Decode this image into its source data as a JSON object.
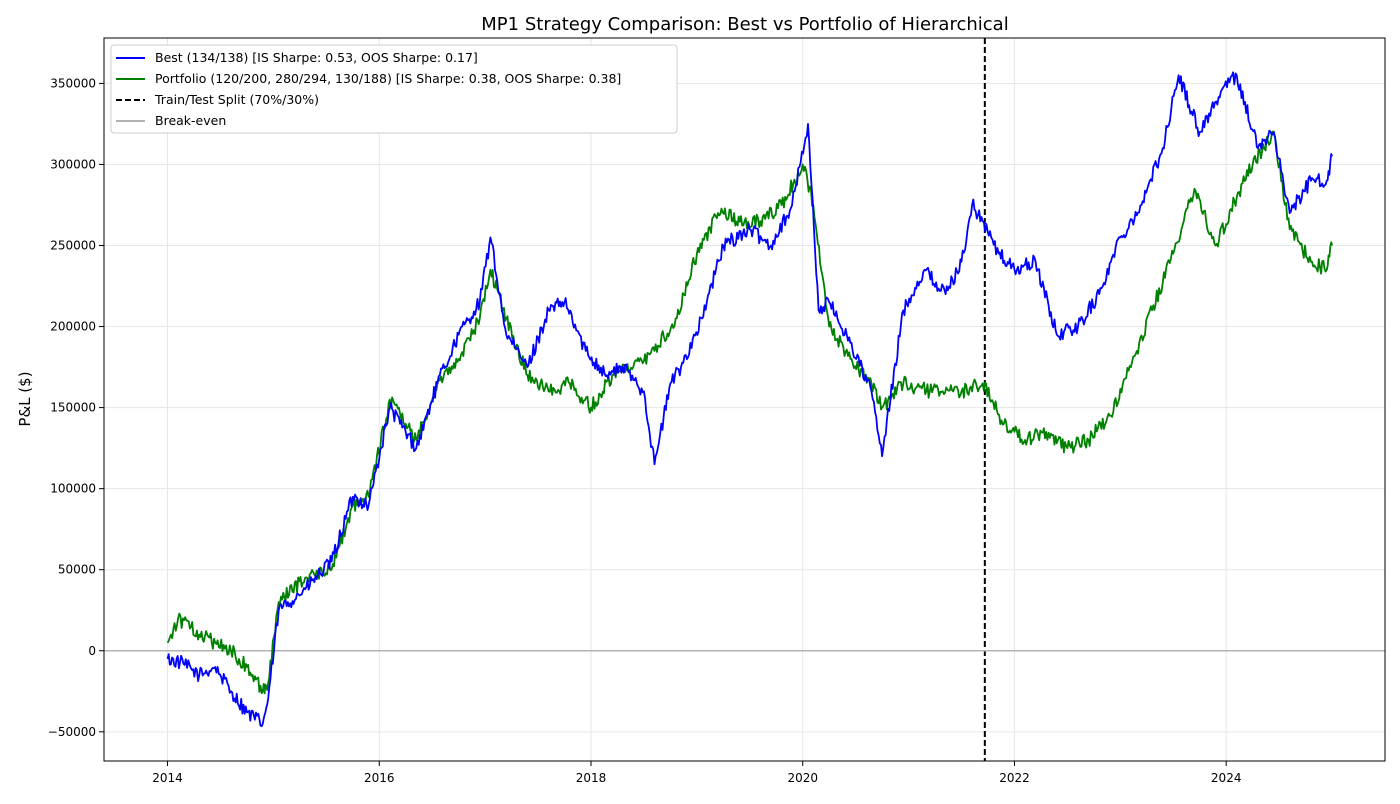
{
  "chart_data": {
    "type": "line",
    "title": "MP1 Strategy Comparison: Best vs Portfolio of Hierarchical",
    "xlabel": "",
    "ylabel": "P&L ($)",
    "xlim": [
      2013.4,
      2025.5
    ],
    "ylim": [
      -68000,
      378000
    ],
    "x_ticks": [
      2014,
      2016,
      2018,
      2020,
      2022,
      2024
    ],
    "x_tick_labels": [
      "2014",
      "2016",
      "2018",
      "2020",
      "2022",
      "2024"
    ],
    "y_ticks": [
      -50000,
      0,
      50000,
      100000,
      150000,
      200000,
      250000,
      300000,
      350000
    ],
    "y_tick_labels": [
      "−50000",
      "0",
      "50000",
      "100000",
      "150000",
      "200000",
      "250000",
      "300000",
      "350000"
    ],
    "grid": true,
    "legend_position": "top-left",
    "series": [
      {
        "name": "Best (134/138) [IS Sharpe: 0.53, OOS Sharpe: 0.17]",
        "color": "#0000ff",
        "style": "solid",
        "x": [
          2014.0,
          2014.15,
          2014.3,
          2014.45,
          2014.6,
          2014.75,
          2014.9,
          2014.95,
          2015.05,
          2015.3,
          2015.55,
          2015.75,
          2015.9,
          2016.1,
          2016.25,
          2016.35,
          2016.55,
          2016.75,
          2016.95,
          2017.05,
          2017.2,
          2017.4,
          2017.6,
          2017.75,
          2017.95,
          2018.15,
          2018.3,
          2018.5,
          2018.6,
          2018.75,
          2018.85,
          2019.05,
          2019.25,
          2019.5,
          2019.7,
          2019.9,
          2020.05,
          2020.15,
          2020.25,
          2020.45,
          2020.65,
          2020.75,
          2020.95,
          2021.15,
          2021.35,
          2021.5,
          2021.6,
          2021.7,
          2021.85,
          2022.0,
          2022.2,
          2022.4,
          2022.6,
          2022.8,
          2023.0,
          2023.2,
          2023.4,
          2023.55,
          2023.75,
          2023.95,
          2024.1,
          2024.3,
          2024.45,
          2024.6,
          2024.8,
          2024.95,
          2025.0
        ],
        "y": [
          -5000,
          -8000,
          -15000,
          -10000,
          -25000,
          -38000,
          -45000,
          -30000,
          25000,
          38000,
          55000,
          95000,
          90000,
          150000,
          135000,
          125000,
          165000,
          195000,
          215000,
          255000,
          195000,
          175000,
          210000,
          215000,
          185000,
          170000,
          175000,
          160000,
          115000,
          165000,
          175000,
          205000,
          250000,
          260000,
          250000,
          275000,
          325000,
          210000,
          215000,
          190000,
          160000,
          120000,
          210000,
          235000,
          220000,
          240000,
          275000,
          265000,
          245000,
          235000,
          240000,
          195000,
          200000,
          220000,
          255000,
          275000,
          310000,
          355000,
          320000,
          345000,
          355000,
          310000,
          320000,
          270000,
          290000,
          290000,
          305000
        ]
      },
      {
        "name": "Portfolio (120/200, 280/294, 130/188) [IS Sharpe: 0.38, OOS Sharpe: 0.38]",
        "color": "#008000",
        "style": "solid",
        "x": [
          2014.0,
          2014.1,
          2014.3,
          2014.45,
          2014.6,
          2014.75,
          2014.9,
          2014.95,
          2015.05,
          2015.3,
          2015.55,
          2015.75,
          2015.9,
          2016.1,
          2016.25,
          2016.35,
          2016.55,
          2016.75,
          2016.95,
          2017.05,
          2017.2,
          2017.4,
          2017.6,
          2017.8,
          2018.0,
          2018.2,
          2018.4,
          2018.6,
          2018.8,
          2019.0,
          2019.2,
          2019.45,
          2019.6,
          2019.8,
          2020.0,
          2020.1,
          2020.25,
          2020.45,
          2020.65,
          2020.75,
          2020.95,
          2021.2,
          2021.5,
          2021.7,
          2021.9,
          2022.1,
          2022.3,
          2022.5,
          2022.7,
          2022.9,
          2023.1,
          2023.3,
          2023.5,
          2023.7,
          2023.9,
          2024.1,
          2024.25,
          2024.45,
          2024.6,
          2024.8,
          2024.95,
          2025.0
        ],
        "y": [
          5000,
          20000,
          10000,
          5000,
          0,
          -10000,
          -25000,
          -20000,
          30000,
          45000,
          50000,
          90000,
          95000,
          155000,
          140000,
          130000,
          165000,
          180000,
          205000,
          235000,
          205000,
          170000,
          160000,
          165000,
          150000,
          170000,
          175000,
          185000,
          205000,
          245000,
          270000,
          265000,
          265000,
          275000,
          300000,
          275000,
          200000,
          180000,
          165000,
          150000,
          165000,
          160000,
          160000,
          165000,
          140000,
          130000,
          135000,
          125000,
          130000,
          145000,
          175000,
          210000,
          245000,
          285000,
          250000,
          280000,
          300000,
          320000,
          260000,
          240000,
          235000,
          250000
        ]
      }
    ],
    "reference_lines": [
      {
        "name": "Train/Test Split (70%/30%)",
        "orientation": "vertical",
        "x": 2021.72,
        "color": "#000000",
        "style": "dashed"
      },
      {
        "name": "Break-even",
        "orientation": "horizontal",
        "y": 0,
        "color": "#b3b3b3",
        "style": "solid"
      }
    ]
  }
}
